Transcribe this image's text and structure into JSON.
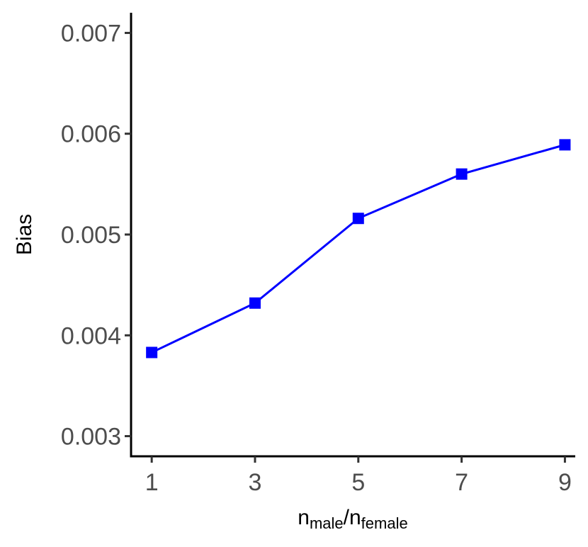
{
  "chart_data": {
    "type": "line",
    "title": "",
    "xlabel": {
      "base1": "n",
      "sub1": "male",
      "sep": "/",
      "base2": "n",
      "sub2": "female"
    },
    "ylabel": "Bias",
    "x": [
      1,
      3,
      5,
      7,
      9
    ],
    "xticks": [
      "1",
      "3",
      "5",
      "7",
      "9"
    ],
    "yticks": [
      "0.003",
      "0.004",
      "0.005",
      "0.006",
      "0.007"
    ],
    "ytick_values": [
      0.003,
      0.004,
      0.005,
      0.006,
      0.007
    ],
    "xlim": [
      0.6,
      9.2
    ],
    "ylim": [
      0.0028,
      0.0072
    ],
    "grid": false,
    "legend": "none",
    "series": [
      {
        "values": [
          0.00383,
          0.00432,
          0.00516,
          0.0056,
          0.00589
        ],
        "color": "#0000ff",
        "marker": "square"
      }
    ]
  }
}
